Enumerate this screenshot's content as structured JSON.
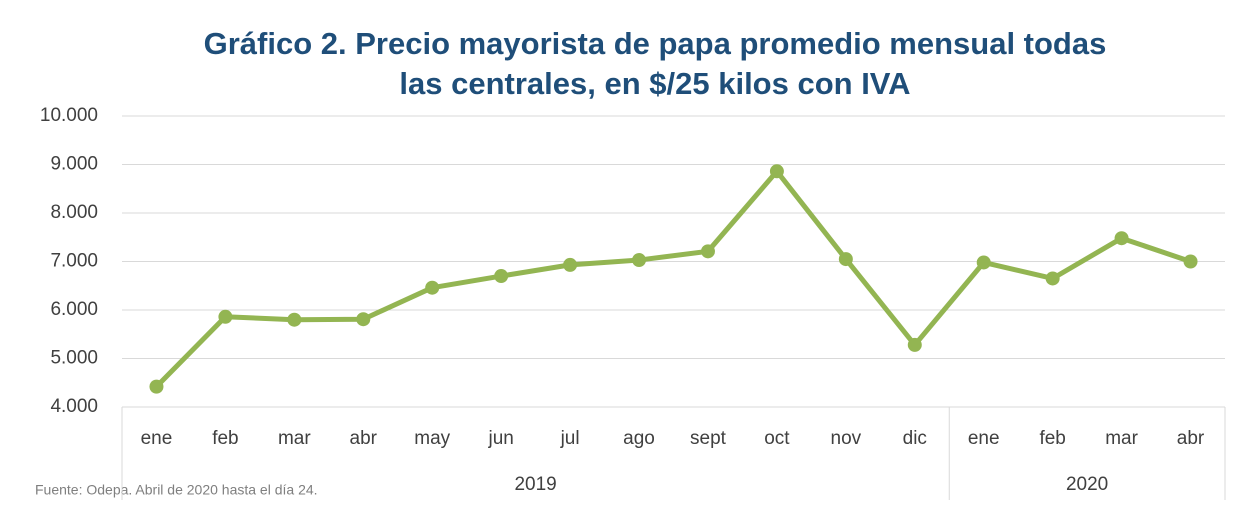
{
  "chart_data": {
    "type": "line",
    "title": [
      "Gráfico 2. Precio mayorista de papa promedio mensual todas",
      "las centrales, en $/25 kilos con IVA"
    ],
    "categories": [
      "ene",
      "feb",
      "mar",
      "abr",
      "may",
      "jun",
      "jul",
      "ago",
      "sept",
      "oct",
      "nov",
      "dic",
      "ene",
      "feb",
      "mar",
      "abr"
    ],
    "groups": [
      {
        "label": "2019",
        "span": 12
      },
      {
        "label": "2020",
        "span": 4
      }
    ],
    "series": [
      {
        "name": "Precio",
        "color": "#93b552",
        "values": [
          4420,
          5860,
          5800,
          5810,
          6460,
          6700,
          6930,
          7030,
          7210,
          8860,
          7050,
          5280,
          6980,
          6650,
          7480,
          7000
        ]
      }
    ],
    "ylim": [
      4000,
      10000
    ],
    "yticks": [
      {
        "value": 4000,
        "label": "4.000"
      },
      {
        "value": 5000,
        "label": "5.000"
      },
      {
        "value": 6000,
        "label": "6.000"
      },
      {
        "value": 7000,
        "label": "7.000"
      },
      {
        "value": 8000,
        "label": "8.000"
      },
      {
        "value": 9000,
        "label": "9.000"
      },
      {
        "value": 10000,
        "label": "10.000"
      }
    ],
    "grid": true,
    "source": "Fuente: Odepa. Abril de 2020 hasta el día 24."
  }
}
